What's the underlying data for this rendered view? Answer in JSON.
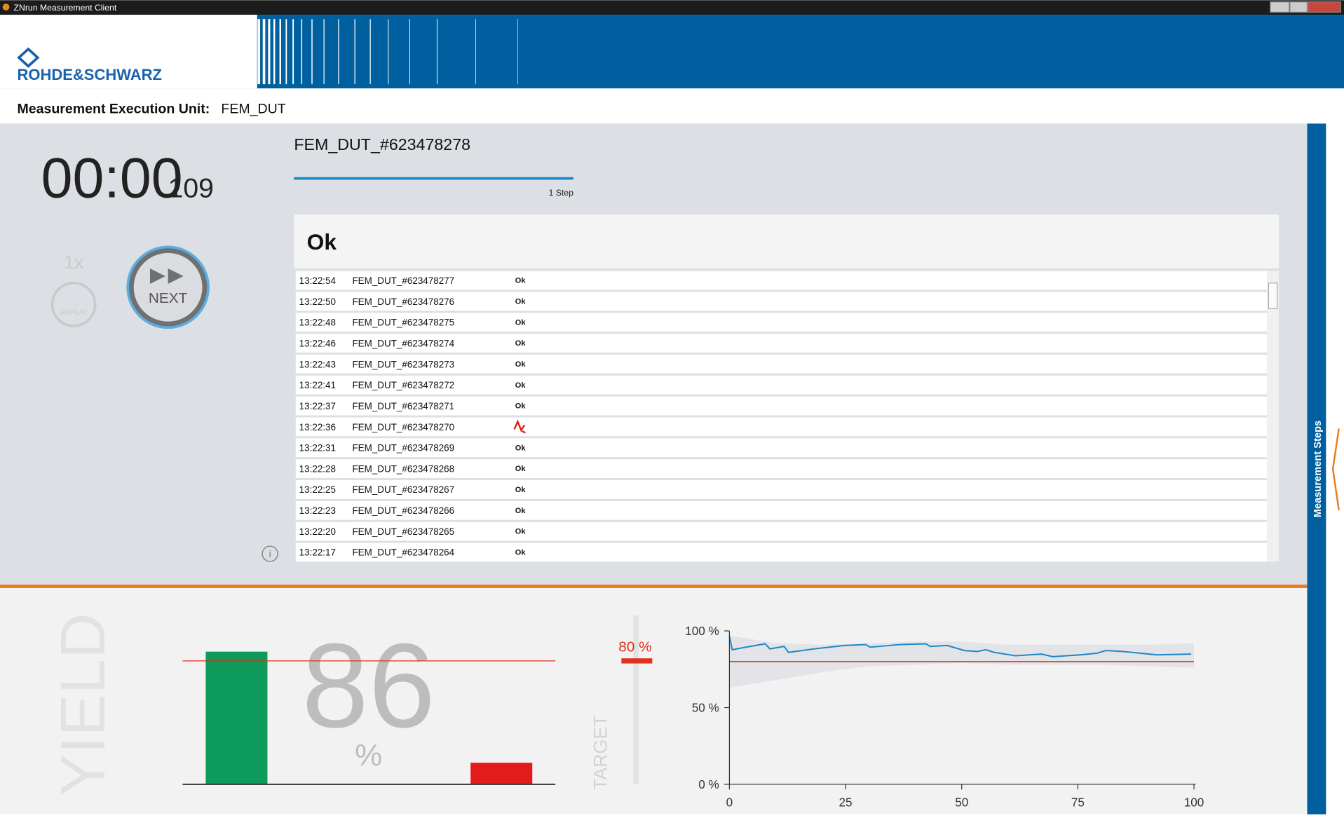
{
  "window": {
    "title": "ZNrun Measurement Client"
  },
  "header": {
    "logo": "ROHDE&SCHWARZ",
    "unit_label": "Measurement Execution Unit:",
    "unit_value": "FEM_DUT"
  },
  "timer": {
    "time": "00:00",
    "ms": "109"
  },
  "controls": {
    "repeat_count": "1x",
    "repeat": "REPEAT",
    "next": "NEXT"
  },
  "run": {
    "dut": "FEM_DUT_#623478278",
    "step": "1 Step",
    "status": "Ok"
  },
  "log": {
    "rows": [
      [
        "13:22:54",
        "FEM_DUT_#623478277",
        "Ok"
      ],
      [
        "13:22:50",
        "FEM_DUT_#623478276",
        "Ok"
      ],
      [
        "13:22:48",
        "FEM_DUT_#623478275",
        "Ok"
      ],
      [
        "13:22:46",
        "FEM_DUT_#623478274",
        "Ok"
      ],
      [
        "13:22:43",
        "FEM_DUT_#623478273",
        "Ok"
      ],
      [
        "13:22:41",
        "FEM_DUT_#623478272",
        "Ok"
      ],
      [
        "13:22:37",
        "FEM_DUT_#623478271",
        "Ok"
      ],
      [
        "13:22:36",
        "FEM_DUT_#623478270",
        null
      ],
      [
        "13:22:31",
        "FEM_DUT_#623478269",
        "Ok"
      ],
      [
        "13:22:28",
        "FEM_DUT_#623478268",
        "Ok"
      ],
      [
        "13:22:25",
        "FEM_DUT_#623478267",
        "Ok"
      ],
      [
        "13:22:23",
        "FEM_DUT_#623478266",
        "Ok"
      ],
      [
        "13:22:20",
        "FEM_DUT_#623478265",
        "Ok"
      ],
      [
        "13:22:17",
        "FEM_DUT_#623478264",
        "Ok"
      ]
    ]
  },
  "side_tab": "Measurement Steps",
  "yield": {
    "label": "YIELD",
    "value": 86,
    "unit": "%",
    "target_label": "TARGET",
    "target": {
      "value": 80,
      "label": "80 %"
    },
    "bar_chart": {
      "type": "bar",
      "values": [
        86,
        14
      ],
      "colors": [
        "#0e9a5b",
        "#e31b1b"
      ],
      "ylim": [
        0,
        100
      ]
    },
    "trend_chart": {
      "type": "line",
      "x": [
        0,
        0.6,
        3.5,
        7.7,
        8.7,
        11.8,
        12.7,
        18.3,
        24.7,
        29.3,
        30.3,
        36.7,
        42.3,
        43.2,
        46.9,
        50.6,
        53.3,
        55.2,
        57,
        61.6,
        67.2,
        69.6,
        75.5,
        79.2,
        81,
        84.7,
        92,
        99.4
      ],
      "series": [
        {
          "color": "#1b86c8",
          "values": [
            96.6,
            87.7,
            89.4,
            91.6,
            88.3,
            89.9,
            86.0,
            88.3,
            90.5,
            91.1,
            89.4,
            91.1,
            91.6,
            89.9,
            90.5,
            87.2,
            86.6,
            87.7,
            86.0,
            83.8,
            84.9,
            83.2,
            84.4,
            85.5,
            87.2,
            86.6,
            84.4,
            84.9
          ]
        }
      ],
      "band": {
        "color": "#e2e4e8",
        "x": [
          0,
          10,
          20,
          30,
          40,
          50,
          60,
          70,
          80,
          90,
          100
        ],
        "lower": [
          63,
          68,
          73,
          77,
          78,
          79,
          78,
          78,
          78,
          77,
          76
        ],
        "upper": [
          97,
          92,
          91,
          92,
          93,
          93,
          91,
          91,
          91,
          91,
          92
        ]
      },
      "target_color": "#e0301e",
      "xlim": [
        0,
        100
      ],
      "ylim": [
        0,
        100
      ],
      "xticks": [
        0,
        25,
        50,
        75,
        100
      ],
      "yticks": [
        {
          "value": 0,
          "label": "0 %"
        },
        {
          "value": 50,
          "label": "50 %"
        },
        {
          "value": 100,
          "label": "100 %"
        }
      ]
    }
  }
}
